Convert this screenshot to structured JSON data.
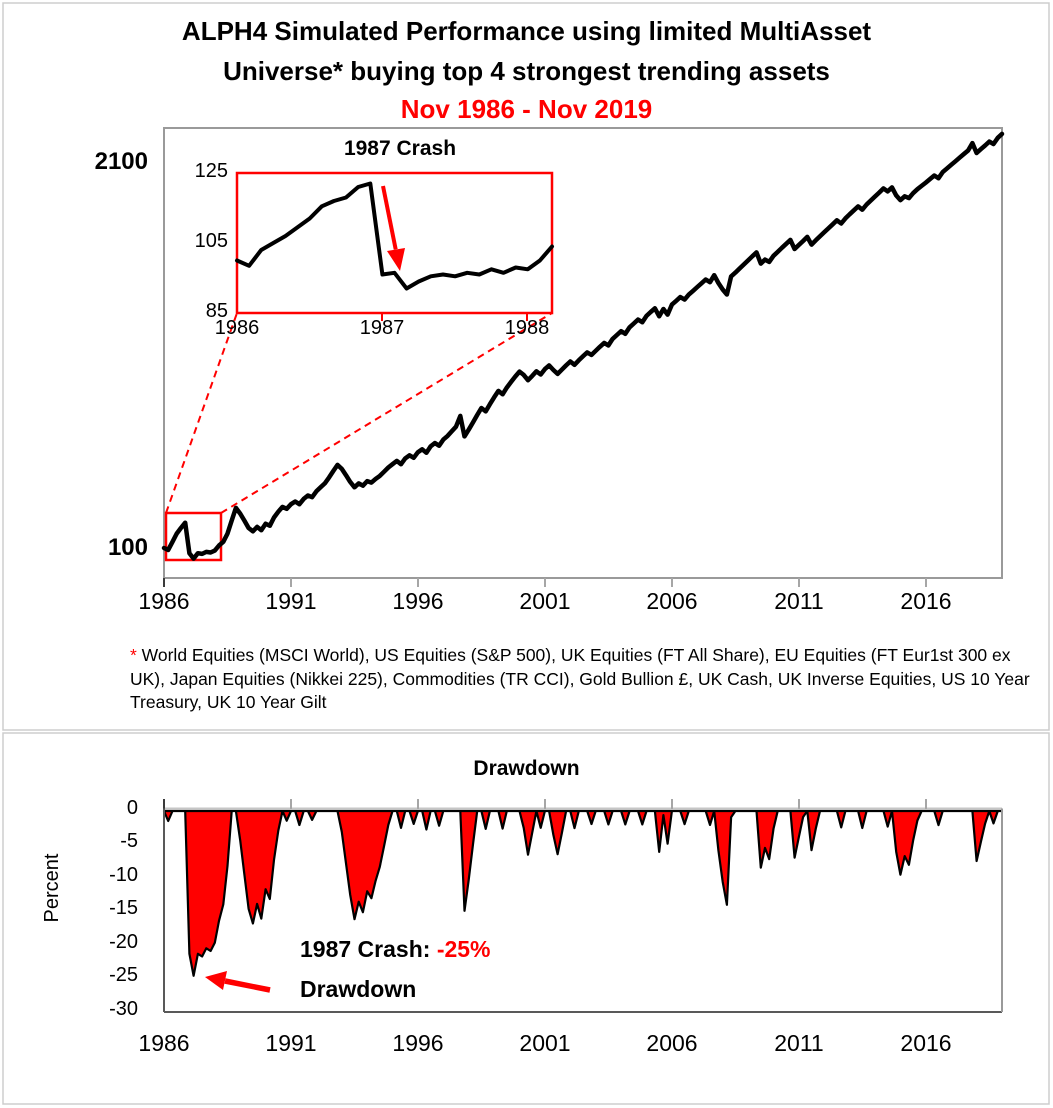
{
  "panel1": {
    "title_line1": "ALPH4 Simulated Performance using limited MultiAsset",
    "title_line2": "Universe* buying top 4 strongest trending assets",
    "subtitle": "Nov 1986 - Nov 2019",
    "y_axis_labels": [
      "2100",
      "100"
    ],
    "x_axis_labels": [
      "1986",
      "1991",
      "1996",
      "2001",
      "2006",
      "2011",
      "2016"
    ],
    "inset": {
      "title": "1987 Crash",
      "y_axis_labels": [
        "125",
        "105",
        "85"
      ],
      "x_axis_labels": [
        "1986",
        "1987",
        "1988"
      ]
    },
    "footnote_star": "*",
    "footnote": " World Equities (MSCI World), US Equities (S&P 500), UK Equities (FT All Share), EU Equities (FT Eur1st 300 ex UK), Japan Equities (Nikkei 225), Commodities (TR CCI), Gold Bullion £, UK Cash, UK Inverse Equities, US 10 Year Treasury, UK 10 Year Gilt"
  },
  "panel2": {
    "title": "Drawdown",
    "y_axis_title": "Percent",
    "y_axis_labels": [
      "0",
      "-5",
      "-10",
      "-15",
      "-20",
      "-25",
      "-30"
    ],
    "x_axis_labels": [
      "1986",
      "1991",
      "1996",
      "2001",
      "2006",
      "2011",
      "2016"
    ],
    "annotation_prefix": "1987 Crash: ",
    "annotation_value": "-25%",
    "annotation_suffix": "Drawdown"
  },
  "colors": {
    "accent_red": "#FF0000",
    "line_black": "#000000",
    "axis_gray": "#A6A6A6"
  },
  "chart_data": [
    {
      "id": "performance",
      "type": "line",
      "title": "ALPH4 Simulated Performance using limited MultiAsset Universe* buying top 4 strongest trending assets, Nov 1986 - Nov 2019",
      "x_start": "Nov 1986",
      "x_end": "Nov 2019",
      "x_interval_months": 2,
      "x_tick_labels": [
        "1986",
        "1991",
        "1996",
        "2001",
        "2006",
        "2011",
        "2016"
      ],
      "y_scale": "log",
      "y_tick_values": [
        2100,
        100
      ],
      "ylim": [
        85,
        2700
      ],
      "grid": false,
      "legend": "none",
      "values": [
        100,
        98.5,
        105,
        112,
        117,
        122,
        96,
        92,
        96,
        95.5,
        97,
        96.5,
        98,
        102,
        105,
        112,
        124,
        137,
        131,
        124,
        117,
        114,
        118,
        115,
        121,
        119,
        127,
        133,
        138,
        136,
        141,
        144,
        141,
        147,
        151,
        149,
        156,
        161,
        166,
        174,
        183,
        192,
        186,
        177,
        168,
        161,
        166,
        163,
        169,
        167,
        172,
        176,
        182,
        188,
        193,
        198,
        193,
        202,
        207,
        203,
        212,
        217,
        211,
        222,
        228,
        223,
        234,
        241,
        250,
        259,
        282,
        240,
        253,
        268,
        284,
        300,
        292,
        309,
        326,
        343,
        334,
        352,
        368,
        384,
        399,
        389,
        373,
        386,
        400,
        390,
        407,
        419,
        404,
        392,
        405,
        419,
        432,
        421,
        436,
        450,
        464,
        455,
        470,
        485,
        500,
        490,
        516,
        532,
        548,
        537,
        565,
        582,
        600,
        588,
        618,
        637,
        656,
        616,
        652,
        624,
        675,
        695,
        716,
        702,
        730,
        752,
        775,
        798,
        822,
        805,
        850,
        800,
        760,
        731,
        842,
        868,
        896,
        925,
        955,
        986,
        1017,
        931,
        961,
        944,
        990,
        1021,
        1054,
        1088,
        1122,
        1044,
        1078,
        1112,
        1148,
        1081,
        1118,
        1154,
        1191,
        1229,
        1268,
        1308,
        1276,
        1328,
        1371,
        1415,
        1459,
        1422,
        1481,
        1528,
        1577,
        1627,
        1680,
        1641,
        1693,
        1590,
        1532,
        1579,
        1557,
        1618,
        1669,
        1714,
        1758,
        1809,
        1859,
        1820,
        1910,
        1966,
        2022,
        2078,
        2139,
        2201,
        2262,
        2397,
        2218,
        2285,
        2352,
        2425,
        2380,
        2498,
        2576
      ]
    },
    {
      "id": "inset_1987_crash",
      "type": "line",
      "title": "1987 Crash",
      "x_start": "Nov 1986",
      "x_end": "Jan 1989",
      "x_interval_months": 1,
      "x_tick_labels": [
        "1986",
        "1987",
        "1988"
      ],
      "y_tick_values": [
        125,
        105,
        85
      ],
      "ylim": [
        85,
        125
      ],
      "grid": false,
      "values": [
        100,
        98.5,
        103,
        105,
        107,
        109.5,
        112,
        115.5,
        117,
        118,
        121,
        122,
        96,
        96.5,
        92,
        94,
        95.5,
        96,
        95.5,
        96.5,
        96,
        97.5,
        96.5,
        98,
        97.5,
        100,
        104
      ]
    },
    {
      "id": "drawdown",
      "type": "area",
      "title": "Drawdown",
      "ylabel": "Percent",
      "y_tick_values": [
        0,
        -5,
        -10,
        -15,
        -20,
        -25,
        -30
      ],
      "ylim": [
        -30,
        0
      ],
      "x_tick_labels": [
        "1986",
        "1991",
        "1996",
        "2001",
        "2006",
        "2011",
        "2016"
      ],
      "values_derived": "drawdown_pct[i] = 100 * (performance.values[i] / running_max(performance.values[0..i]) - 1)",
      "max_drawdown_pct": -25,
      "max_drawdown_event": "1987 Crash",
      "fill_color": "#FF0000",
      "outline_color": "#000000"
    }
  ]
}
